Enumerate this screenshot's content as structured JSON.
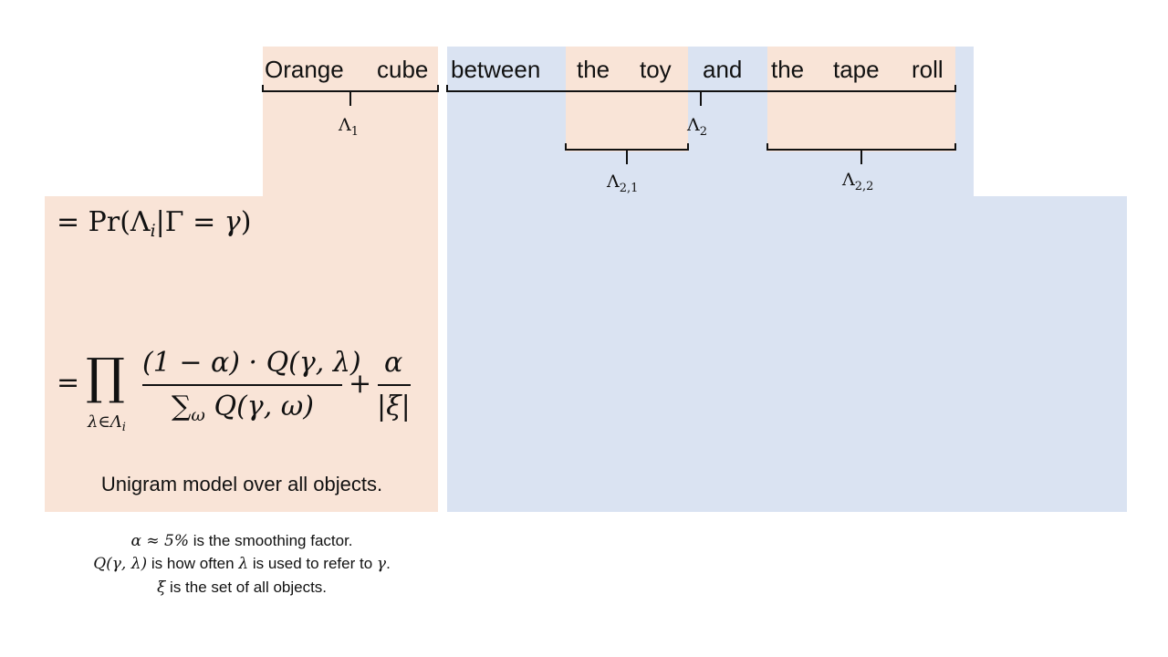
{
  "colors": {
    "peach": "#f9e4d7",
    "blue": "#dae3f2",
    "ink": "#111111"
  },
  "phrase": {
    "words": [
      "Orange",
      "cube",
      "between",
      "the",
      "toy",
      "and",
      "the",
      "tape",
      "roll"
    ]
  },
  "brackets": {
    "lambda_1": {
      "symbol": "Λ",
      "sub": "1"
    },
    "lambda_2": {
      "symbol": "Λ",
      "sub": "2"
    },
    "lambda_2_1": {
      "symbol": "Λ",
      "sub": "2,1"
    },
    "lambda_2_2": {
      "symbol": "Λ",
      "sub": "2,2"
    }
  },
  "equation_1": {
    "lead": "= Pr(Λ",
    "sub": "i",
    "middle": "|Γ = ",
    "var": "γ",
    "close": ")"
  },
  "equation_2": {
    "eq": "=",
    "product": "∏",
    "product_sub": "λ∈Λ",
    "product_sub_i": "i",
    "numerator": "(1 − α) · Q(γ, λ)",
    "denominator": "∑",
    "denominator_sub": "ω",
    "denominator_rest": "Q(γ, ω)",
    "plus": "+",
    "alpha": "α",
    "xi_abs": "|ξ|"
  },
  "caption": "Unigram model over all objects.",
  "notes": {
    "line1_math": "α ≈ 5%",
    "line1_text": " is the smoothing factor.",
    "line2_math_a": "Q(γ, λ)",
    "line2_text_a": " is how often ",
    "line2_math_b": "λ",
    "line2_text_b": " is used to refer to ",
    "line2_math_c": "γ",
    "line2_text_c": ".",
    "line3_math": "ξ",
    "line3_text": " is the set of all objects."
  }
}
